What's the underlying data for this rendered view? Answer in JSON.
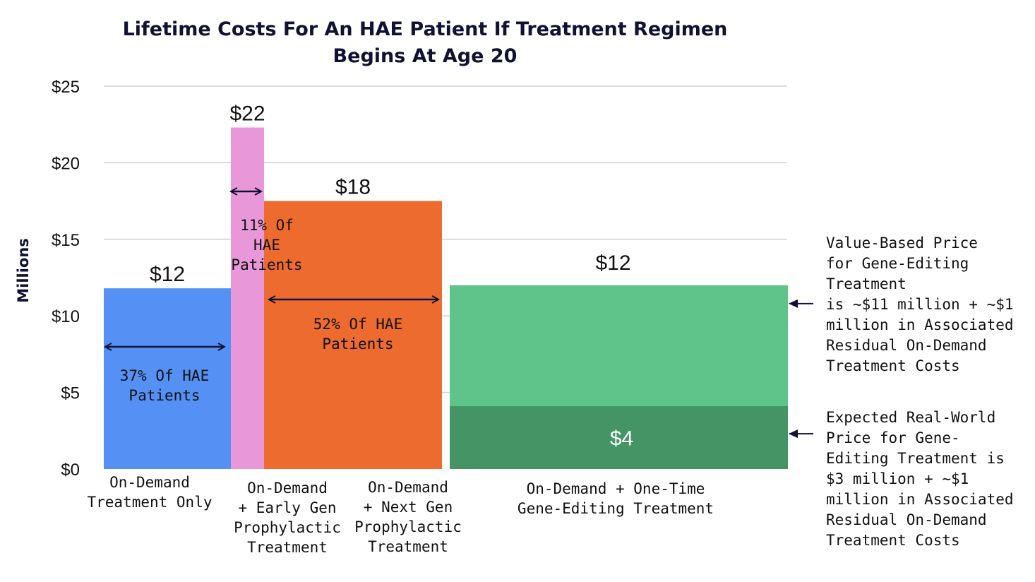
{
  "chart_data": {
    "type": "bar",
    "title": [
      "Lifetime Costs For An HAE Patient If Treatment Regimen",
      "Begins At Age 20"
    ],
    "ylabel": "Millions",
    "ylim": [
      0,
      25
    ],
    "yticks": [
      "$0",
      "$5",
      "$10",
      "$15",
      "$20",
      "$25"
    ],
    "grid": true,
    "bars": [
      {
        "category_lines": [
          "On-Demand",
          "Treatment Only"
        ],
        "value": 11.8,
        "value_label": "$12",
        "share_pct": 37,
        "share_lines": [
          "37% Of HAE",
          "Patients"
        ],
        "color": "#5591f5"
      },
      {
        "category_lines": [
          "On-Demand",
          "+ Early Gen",
          "Prophylactic",
          "Treatment"
        ],
        "value": 22.3,
        "value_label": "$22",
        "share_pct": 11,
        "share_lines": [
          "11% Of",
          "HAE",
          "Patients"
        ],
        "color": "#e898d8"
      },
      {
        "category_lines": [
          "On-Demand",
          "+ Next Gen",
          "Prophylactic",
          "Treatment"
        ],
        "value": 17.5,
        "value_label": "$18",
        "share_pct": 52,
        "share_lines": [
          "52% Of HAE",
          "Patients"
        ],
        "color": "#ed6b2f"
      },
      {
        "category_lines": [
          "On-Demand + One-Time",
          "Gene-Editing Treatment"
        ],
        "value": 12.0,
        "value_label": "$12",
        "lower_value": 4.1,
        "lower_label": "$4",
        "color": "#5ec48a",
        "lower_color": "#449466"
      }
    ],
    "annotations": [
      {
        "lines": [
          "Value-Based Price",
          "for Gene-Editing",
          "Treatment",
          "is ~$11 million + ~$1",
          "million in Associated",
          "Residual On-Demand",
          "Treatment Costs"
        ],
        "points_to_value": 10.8
      },
      {
        "lines": [
          "Expected Real-World",
          "Price for Gene-",
          "Editing Treatment is",
          "$3 million + ~$1",
          "million in Associated",
          "Residual On-Demand",
          "Treatment Costs"
        ],
        "points_to_value": 2.3
      }
    ]
  }
}
